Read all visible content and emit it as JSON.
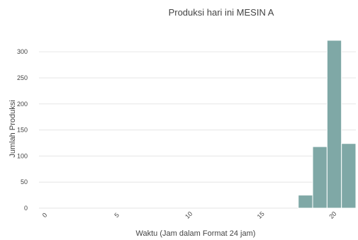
{
  "chart_data": {
    "type": "bar",
    "title": "Produksi hari ini MESIN A",
    "xlabel": "Waktu (Jam dalam Format 24 jam)",
    "ylabel": "Jumlah Produksi",
    "x": [
      18,
      19,
      20,
      21
    ],
    "values": [
      25,
      118,
      322,
      124
    ],
    "xlim": [
      -0.5,
      21.5
    ],
    "ylim": [
      0,
      345
    ],
    "xticks": [
      0,
      5,
      10,
      15,
      20
    ],
    "xtick_labels": [
      "0",
      "5",
      "10",
      "15",
      "20"
    ],
    "yticks": [
      0,
      50,
      100,
      150,
      200,
      250,
      300
    ],
    "ytick_labels": [
      "0",
      "50",
      "100",
      "150",
      "200",
      "250",
      "300"
    ],
    "bar_color": "#7fa8a6",
    "grid": true,
    "legend": "none"
  }
}
